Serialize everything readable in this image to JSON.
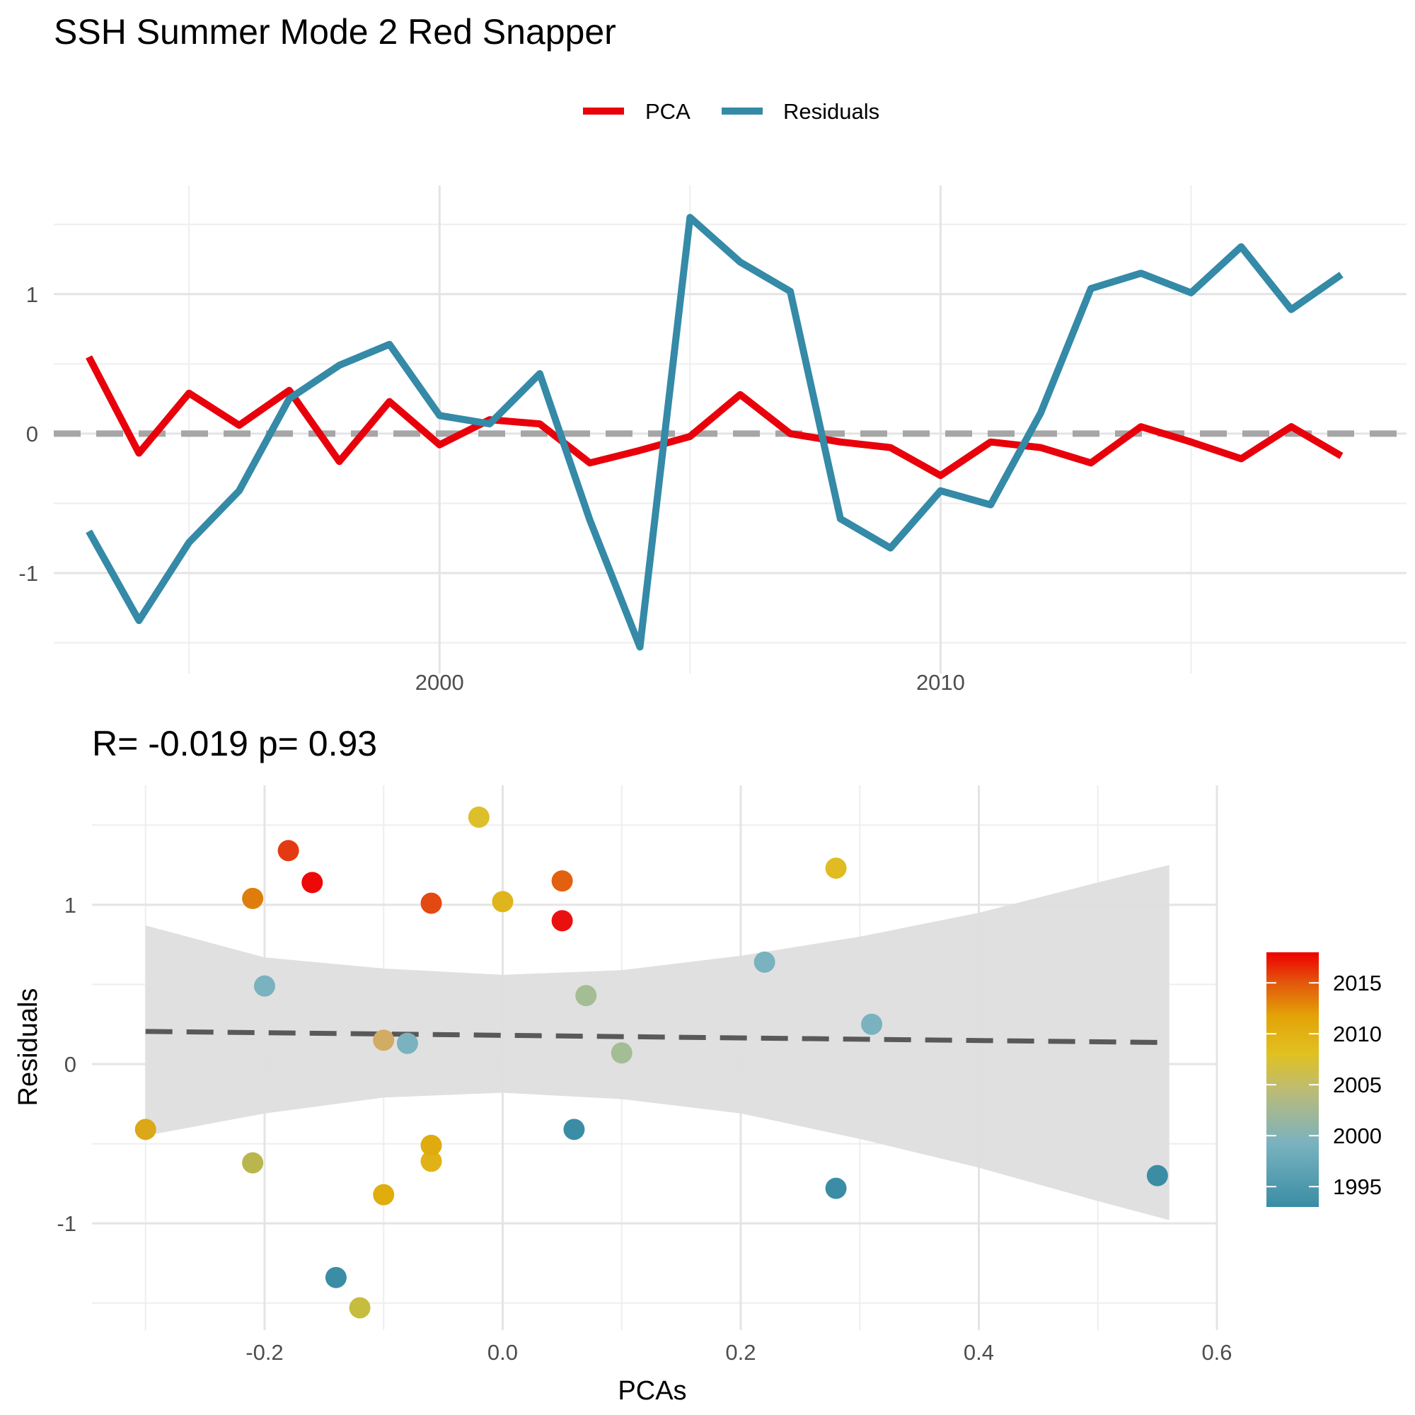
{
  "title": "SSH Summer Mode 2 Red Snapper",
  "chart_data": [
    {
      "type": "line",
      "legend": {
        "position": "top",
        "entries": [
          "PCA",
          "Residuals"
        ]
      },
      "colors": {
        "PCA": "#e8000b",
        "Residuals": "#348aa7",
        "zero_line": "#a6a6a6"
      },
      "x": [
        1993,
        1994,
        1995,
        1996,
        1997,
        1998,
        1999,
        2000,
        2001,
        2002,
        2003,
        2004,
        2005,
        2006,
        2007,
        2008,
        2009,
        2010,
        2011,
        2012,
        2013,
        2014,
        2015,
        2016,
        2017,
        2018
      ],
      "series": [
        {
          "name": "PCA",
          "values": [
            0.55,
            -0.14,
            0.29,
            0.06,
            0.31,
            -0.2,
            0.23,
            -0.08,
            0.1,
            0.07,
            -0.21,
            -0.12,
            -0.02,
            0.28,
            0.0,
            -0.06,
            -0.1,
            -0.3,
            -0.06,
            -0.1,
            -0.21,
            0.05,
            -0.06,
            -0.18,
            0.05,
            -0.16
          ]
        },
        {
          "name": "Residuals",
          "values": [
            -0.7,
            -1.34,
            -0.78,
            -0.41,
            0.25,
            0.49,
            0.64,
            0.13,
            0.07,
            0.43,
            -0.62,
            -1.53,
            1.55,
            1.23,
            1.02,
            -0.61,
            -0.82,
            -0.41,
            -0.51,
            0.15,
            1.04,
            1.15,
            1.01,
            1.34,
            0.89,
            1.14
          ]
        }
      ],
      "xlim": [
        1992.3,
        2019.3
      ],
      "ylim": [
        -1.72,
        1.78
      ],
      "x_ticks": [
        2000,
        2010
      ],
      "y_ticks": [
        -1,
        0,
        1
      ],
      "grid": true,
      "xlabel": "",
      "ylabel": ""
    },
    {
      "type": "scatter",
      "subtitle": "R= -0.019  p= 0.93",
      "xlabel": "PCAs",
      "ylabel": "Residuals",
      "xlim": [
        -0.345,
        0.6
      ],
      "ylim": [
        -1.67,
        1.75
      ],
      "x_ticks": [
        "-0.2",
        "0.0",
        "0.2",
        "0.4",
        "0.6"
      ],
      "y_ticks": [
        "-1",
        "0",
        "1"
      ],
      "grid": true,
      "colorbar": {
        "position": "right",
        "ticks": [
          "1995",
          "2000",
          "2005",
          "2010",
          "2015"
        ],
        "range": [
          1993,
          2018
        ]
      },
      "regression": {
        "style": "dashed",
        "start": [
          -0.3,
          0.205
        ],
        "end": [
          0.56,
          0.135
        ],
        "color": "#595959"
      },
      "confidence_band": {
        "x": [
          -0.3,
          -0.2,
          -0.1,
          0.0,
          0.1,
          0.2,
          0.3,
          0.4,
          0.5,
          0.56
        ],
        "upper": [
          0.87,
          0.67,
          0.6,
          0.56,
          0.59,
          0.68,
          0.8,
          0.95,
          1.14,
          1.25
        ],
        "lower": [
          -0.45,
          -0.31,
          -0.21,
          -0.18,
          -0.22,
          -0.31,
          -0.47,
          -0.65,
          -0.86,
          -0.98
        ],
        "color": "#dedede"
      },
      "points": [
        {
          "x": 0.55,
          "y": -0.7,
          "year": 1993,
          "color": "#3a8da5"
        },
        {
          "x": -0.14,
          "y": -1.34,
          "year": 1994,
          "color": "#3a8da5"
        },
        {
          "x": 0.28,
          "y": -0.78,
          "year": 1995,
          "color": "#3a8da5"
        },
        {
          "x": 0.06,
          "y": -0.41,
          "year": 1996,
          "color": "#3a8da5"
        },
        {
          "x": 0.31,
          "y": 0.25,
          "year": 1997,
          "color": "#7ab2bf"
        },
        {
          "x": -0.2,
          "y": 0.49,
          "year": 1998,
          "color": "#7ab2bf"
        },
        {
          "x": 0.22,
          "y": 0.64,
          "year": 1999,
          "color": "#7ab2bf"
        },
        {
          "x": -0.08,
          "y": 0.13,
          "year": 2000,
          "color": "#7ab2bf"
        },
        {
          "x": 0.1,
          "y": 0.07,
          "year": 2001,
          "color": "#a3bd95"
        },
        {
          "x": 0.07,
          "y": 0.43,
          "year": 2002,
          "color": "#a3bd95"
        },
        {
          "x": -0.21,
          "y": -0.62,
          "year": 2003,
          "color": "#b9b64e"
        },
        {
          "x": -0.12,
          "y": -1.53,
          "year": 2004,
          "color": "#c6bc3e"
        },
        {
          "x": -0.02,
          "y": 1.55,
          "year": 2005,
          "color": "#dcbf2b"
        },
        {
          "x": 0.28,
          "y": 1.23,
          "year": 2006,
          "color": "#e0bc22"
        },
        {
          "x": 0.0,
          "y": 1.02,
          "year": 2007,
          "color": "#e0b51b"
        },
        {
          "x": -0.06,
          "y": -0.61,
          "year": 2008,
          "color": "#e1b216"
        },
        {
          "x": -0.1,
          "y": -0.82,
          "year": 2009,
          "color": "#e0ad0d"
        },
        {
          "x": -0.3,
          "y": -0.41,
          "year": 2010,
          "color": "#dba81a"
        },
        {
          "x": -0.06,
          "y": -0.51,
          "year": 2011,
          "color": "#e0ab0e"
        },
        {
          "x": -0.1,
          "y": 0.15,
          "year": 2012,
          "color": "#d2ab64"
        },
        {
          "x": -0.21,
          "y": 1.04,
          "year": 2013,
          "color": "#df7d0c"
        },
        {
          "x": 0.05,
          "y": 1.15,
          "year": 2014,
          "color": "#e26010"
        },
        {
          "x": -0.06,
          "y": 1.01,
          "year": 2015,
          "color": "#e24a12"
        },
        {
          "x": -0.18,
          "y": 1.34,
          "year": 2016,
          "color": "#e43a12"
        },
        {
          "x": 0.05,
          "y": 0.9,
          "year": 2017,
          "color": "#eb1010"
        },
        {
          "x": -0.16,
          "y": 1.14,
          "year": 2018,
          "color": "#ee0808"
        }
      ]
    }
  ]
}
